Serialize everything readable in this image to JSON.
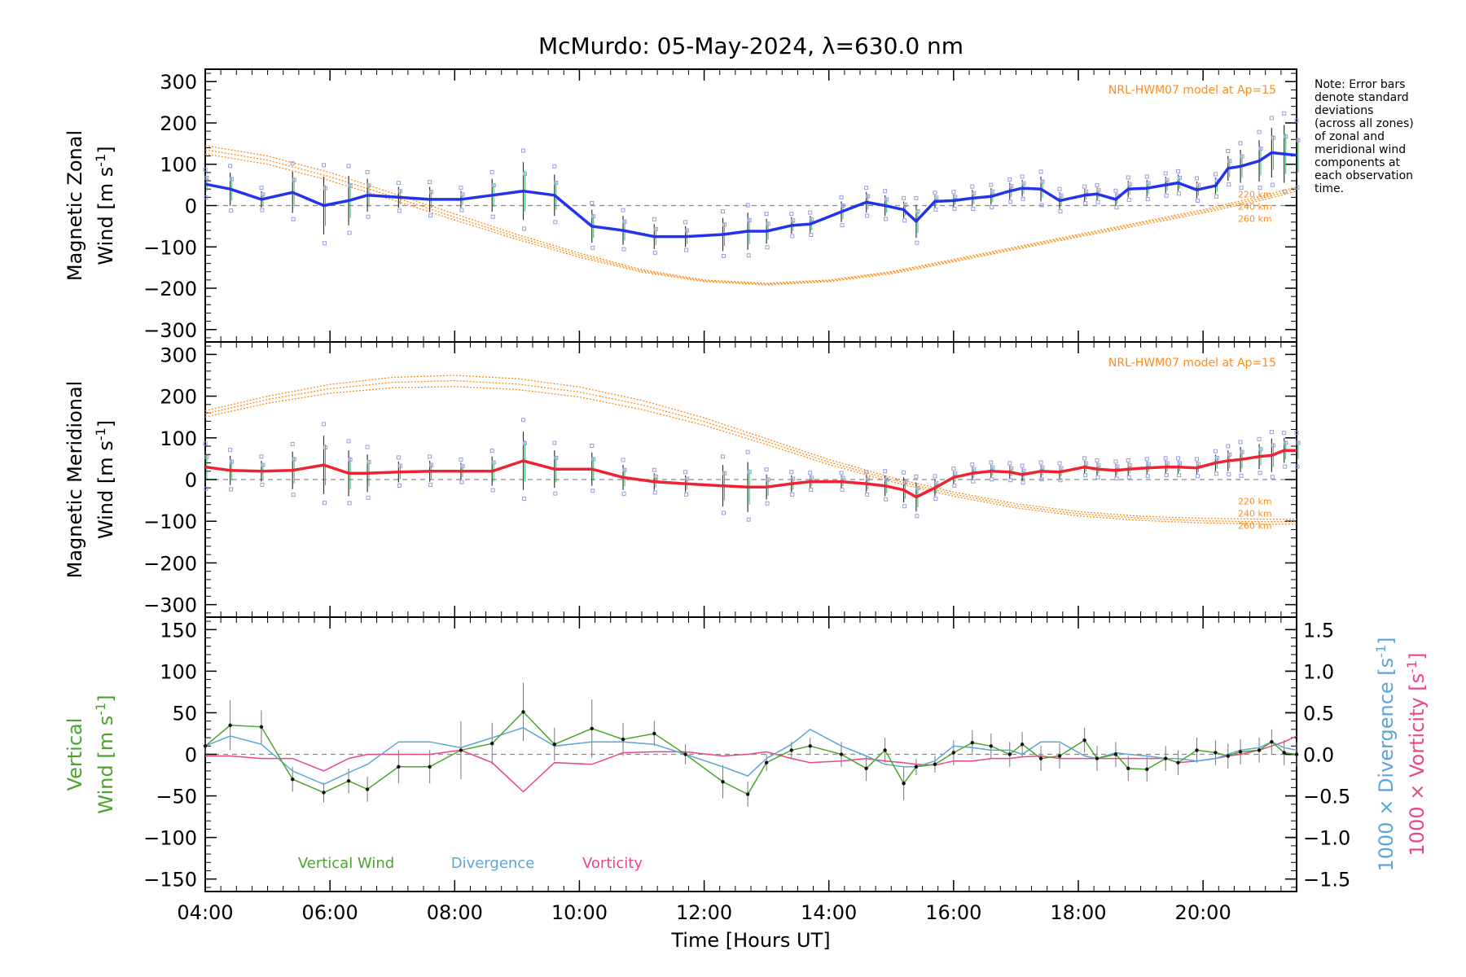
{
  "title": "McMurdo: 05-May-2024, λ=630.0 nm",
  "note": "Note: Error bars\ndenote standard\ndeviations\n(across all zones)\nof zonal and\nmeridional wind\ncomponents at\neach observation\ntime.",
  "xlabel": "Time [Hours UT]",
  "colors": {
    "zonal": "#2233ee",
    "meridional": "#ee2233",
    "model": "#ff8c1a",
    "vertical": "#4aa52a",
    "divergence": "#5aa6d6",
    "vorticity": "#ee4488",
    "scatter": "#9999dd",
    "zero_line": "#888888"
  },
  "chart_data": [
    {
      "type": "line",
      "panel": "zonal",
      "ylabel_line1": "Magnetic Zonal",
      "ylabel_line2": "Wind [m s",
      "ylabel_sup": "-1",
      "ylabel_end": "]",
      "ylim": [
        -330,
        330
      ],
      "xlim": [
        4.0,
        21.5
      ],
      "yticks": [
        -300,
        -200,
        -100,
        0,
        100,
        200,
        300
      ],
      "model_label": "NRL-HWM07 model at Ap=15",
      "altitude_labels": [
        "220 km",
        "240 km",
        "260 km"
      ],
      "x": [
        4.0,
        4.4,
        4.9,
        5.4,
        5.9,
        6.3,
        6.6,
        7.1,
        7.6,
        8.1,
        8.6,
        9.1,
        9.6,
        10.2,
        10.7,
        11.2,
        11.7,
        12.3,
        12.7,
        13.0,
        13.4,
        13.7,
        14.2,
        14.6,
        14.9,
        15.2,
        15.4,
        15.7,
        16.0,
        16.3,
        16.6,
        16.9,
        17.1,
        17.4,
        17.7,
        18.1,
        18.3,
        18.6,
        18.8,
        19.1,
        19.4,
        19.6,
        19.9,
        20.2,
        20.4,
        20.6,
        20.9,
        21.1,
        21.3,
        21.5
      ],
      "values": [
        52,
        40,
        15,
        32,
        0,
        12,
        25,
        20,
        15,
        15,
        25,
        35,
        25,
        -50,
        -60,
        -75,
        -75,
        -70,
        -62,
        -62,
        -48,
        -45,
        -15,
        8,
        0,
        -10,
        -38,
        10,
        12,
        18,
        22,
        35,
        42,
        40,
        12,
        25,
        28,
        15,
        40,
        42,
        50,
        55,
        38,
        48,
        90,
        95,
        108,
        128,
        125,
        122
      ],
      "error": [
        25,
        40,
        20,
        50,
        70,
        60,
        40,
        25,
        30,
        20,
        40,
        70,
        50,
        40,
        35,
        30,
        25,
        40,
        45,
        30,
        20,
        20,
        25,
        25,
        25,
        20,
        40,
        15,
        15,
        20,
        20,
        20,
        20,
        30,
        20,
        15,
        15,
        15,
        20,
        20,
        20,
        20,
        20,
        20,
        30,
        40,
        50,
        60,
        70,
        60
      ],
      "model": [
        {
          "name": "220 km",
          "x": [
            4.0,
            5.0,
            6.0,
            7.0,
            8.0,
            9.0,
            10.0,
            11.0,
            12.0,
            13.0,
            14.0,
            15.0,
            16.0,
            17.0,
            18.0,
            19.0,
            20.0,
            21.0,
            21.5
          ],
          "values": [
            145,
            120,
            80,
            30,
            -20,
            -70,
            -115,
            -155,
            -180,
            -188,
            -180,
            -160,
            -130,
            -100,
            -70,
            -40,
            -10,
            25,
            45
          ]
        },
        {
          "name": "240 km",
          "x": [
            4.0,
            5.0,
            6.0,
            7.0,
            8.0,
            9.0,
            10.0,
            11.0,
            12.0,
            13.0,
            14.0,
            15.0,
            16.0,
            17.0,
            18.0,
            19.0,
            20.0,
            21.0,
            21.5
          ],
          "values": [
            135,
            110,
            70,
            22,
            -28,
            -76,
            -120,
            -158,
            -182,
            -190,
            -182,
            -162,
            -133,
            -103,
            -73,
            -43,
            -14,
            20,
            40
          ]
        },
        {
          "name": "260 km",
          "x": [
            4.0,
            5.0,
            6.0,
            7.0,
            8.0,
            9.0,
            10.0,
            11.0,
            12.0,
            13.0,
            14.0,
            15.0,
            16.0,
            17.0,
            18.0,
            19.0,
            20.0,
            21.0,
            21.5
          ],
          "values": [
            125,
            100,
            60,
            14,
            -35,
            -82,
            -125,
            -161,
            -184,
            -192,
            -184,
            -165,
            -136,
            -106,
            -76,
            -47,
            -18,
            15,
            35
          ]
        }
      ]
    },
    {
      "type": "line",
      "panel": "meridional",
      "ylabel_line1": "Magnetic Meridional",
      "ylabel_line2": "Wind [m s",
      "ylabel_sup": "-1",
      "ylabel_end": "]",
      "ylim": [
        -330,
        330
      ],
      "xlim": [
        4.0,
        21.5
      ],
      "yticks": [
        -300,
        -200,
        -100,
        0,
        100,
        200,
        300
      ],
      "model_label": "NRL-HWM07 model at Ap=15",
      "altitude_labels": [
        "220 km",
        "240 km",
        "260 km"
      ],
      "x": [
        4.0,
        4.4,
        4.9,
        5.4,
        5.9,
        6.3,
        6.6,
        7.1,
        7.6,
        8.1,
        8.6,
        9.1,
        9.6,
        10.2,
        10.7,
        11.2,
        11.7,
        12.3,
        12.7,
        13.0,
        13.4,
        13.7,
        14.2,
        14.6,
        14.9,
        15.2,
        15.4,
        15.7,
        16.0,
        16.3,
        16.6,
        16.9,
        17.1,
        17.4,
        17.7,
        18.1,
        18.3,
        18.6,
        18.8,
        19.1,
        19.4,
        19.6,
        19.9,
        20.2,
        20.4,
        20.6,
        20.9,
        21.1,
        21.3,
        21.5
      ],
      "values": [
        30,
        22,
        20,
        22,
        35,
        15,
        15,
        18,
        20,
        20,
        20,
        45,
        25,
        25,
        5,
        -5,
        -10,
        -15,
        -18,
        -18,
        -10,
        -5,
        -5,
        -10,
        -15,
        -25,
        -42,
        -20,
        5,
        15,
        20,
        18,
        12,
        20,
        18,
        30,
        25,
        22,
        25,
        28,
        30,
        30,
        28,
        40,
        45,
        48,
        55,
        58,
        70,
        70
      ],
      "error": [
        40,
        35,
        25,
        45,
        70,
        55,
        45,
        25,
        25,
        20,
        35,
        70,
        45,
        40,
        30,
        20,
        20,
        50,
        60,
        30,
        20,
        15,
        15,
        20,
        25,
        30,
        35,
        20,
        15,
        15,
        15,
        15,
        15,
        15,
        15,
        15,
        15,
        15,
        15,
        15,
        15,
        15,
        15,
        20,
        25,
        30,
        30,
        40,
        30,
        30
      ],
      "model": [
        {
          "name": "220 km",
          "x": [
            4.0,
            5.0,
            6.0,
            7.0,
            8.0,
            9.0,
            10.0,
            11.0,
            12.0,
            13.0,
            14.0,
            15.0,
            16.0,
            17.0,
            18.0,
            19.0,
            20.0,
            21.0,
            21.5
          ],
          "values": [
            165,
            200,
            228,
            245,
            250,
            242,
            222,
            190,
            148,
            98,
            48,
            5,
            -30,
            -58,
            -77,
            -88,
            -93,
            -95,
            -95
          ]
        },
        {
          "name": "240 km",
          "x": [
            4.0,
            5.0,
            6.0,
            7.0,
            8.0,
            9.0,
            10.0,
            11.0,
            12.0,
            13.0,
            14.0,
            15.0,
            16.0,
            17.0,
            18.0,
            19.0,
            20.0,
            21.0,
            21.5
          ],
          "values": [
            158,
            192,
            218,
            233,
            237,
            229,
            210,
            179,
            139,
            91,
            42,
            0,
            -35,
            -63,
            -82,
            -93,
            -99,
            -101,
            -101
          ]
        },
        {
          "name": "260 km",
          "x": [
            4.0,
            5.0,
            6.0,
            7.0,
            8.0,
            9.0,
            10.0,
            11.0,
            12.0,
            13.0,
            14.0,
            15.0,
            16.0,
            17.0,
            18.0,
            19.0,
            20.0,
            21.0,
            21.5
          ],
          "values": [
            150,
            183,
            207,
            220,
            223,
            216,
            198,
            168,
            130,
            84,
            36,
            -5,
            -40,
            -68,
            -87,
            -98,
            -104,
            -107,
            -107
          ]
        }
      ]
    },
    {
      "type": "line",
      "panel": "vertical",
      "ylabel_line1": "Vertical",
      "ylabel_line2": "Wind [m s",
      "ylabel_sup": "-1",
      "ylabel_end": "]",
      "ylim": [
        -165,
        165
      ],
      "xlim": [
        4.0,
        21.5
      ],
      "yticks": [
        -150,
        -100,
        -50,
        0,
        50,
        100,
        150
      ],
      "xticks": [
        "04:00",
        "06:00",
        "08:00",
        "10:00",
        "12:00",
        "14:00",
        "16:00",
        "18:00",
        "20:00"
      ],
      "y2label_div": "1000 × Divergence [s",
      "y2label_vort": "1000 × Vorticity [s",
      "y2label_sup": "-1",
      "y2label_end": "]",
      "y2lim": [
        -1.65,
        1.65
      ],
      "y2ticks": [
        -1.5,
        -1.0,
        -0.5,
        0.0,
        0.5,
        1.0,
        1.5
      ],
      "legend": [
        "Vertical Wind",
        "Divergence",
        "Vorticity"
      ],
      "series": [
        {
          "name": "Vertical Wind",
          "x": [
            4.0,
            4.4,
            4.9,
            5.4,
            5.9,
            6.3,
            6.6,
            7.1,
            7.6,
            8.1,
            8.6,
            9.1,
            9.6,
            10.2,
            10.7,
            11.2,
            11.7,
            12.3,
            12.7,
            13.0,
            13.4,
            13.7,
            14.2,
            14.6,
            14.9,
            15.2,
            15.4,
            15.7,
            16.0,
            16.3,
            16.6,
            16.9,
            17.1,
            17.4,
            17.7,
            18.1,
            18.3,
            18.6,
            18.8,
            19.1,
            19.4,
            19.6,
            19.9,
            20.2,
            20.4,
            20.6,
            20.9,
            21.1,
            21.3,
            21.5
          ],
          "values": [
            10,
            35,
            33,
            -30,
            -46,
            -32,
            -42,
            -15,
            -15,
            5,
            13,
            51,
            12,
            31,
            18,
            25,
            0,
            -33,
            -48,
            -10,
            5,
            10,
            0,
            -17,
            5,
            -35,
            -15,
            -12,
            2,
            14,
            10,
            0,
            12,
            -5,
            -2,
            17,
            -5,
            0,
            -17,
            -18,
            -5,
            -10,
            5,
            2,
            -2,
            3,
            5,
            15,
            2,
            0
          ],
          "error": [
            10,
            30,
            20,
            15,
            12,
            15,
            15,
            20,
            20,
            35,
            25,
            35,
            20,
            35,
            20,
            15,
            12,
            20,
            15,
            10,
            10,
            10,
            15,
            15,
            15,
            20,
            10,
            10,
            15,
            15,
            15,
            15,
            15,
            15,
            15,
            15,
            15,
            15,
            15,
            15,
            15,
            15,
            15,
            15,
            15,
            15,
            15,
            15,
            15,
            15
          ]
        },
        {
          "name": "Divergence",
          "x": [
            4.0,
            4.4,
            4.9,
            5.4,
            5.9,
            6.3,
            6.6,
            7.1,
            7.6,
            8.1,
            8.6,
            9.1,
            9.6,
            10.2,
            10.7,
            11.2,
            11.7,
            12.3,
            12.7,
            13.0,
            13.4,
            13.7,
            14.2,
            14.6,
            14.9,
            15.2,
            15.4,
            15.7,
            16.0,
            16.3,
            16.6,
            16.9,
            17.1,
            17.4,
            17.7,
            18.1,
            18.3,
            18.6,
            18.8,
            19.1,
            19.4,
            19.6,
            19.9,
            20.2,
            20.4,
            20.6,
            20.9,
            21.1,
            21.3,
            21.5
          ],
          "values": [
            0.1,
            0.22,
            0.12,
            -0.2,
            -0.36,
            -0.22,
            -0.12,
            0.15,
            0.15,
            0.08,
            0.2,
            0.32,
            0.1,
            0.15,
            0.15,
            0.12,
            0.0,
            -0.15,
            -0.26,
            -0.05,
            0.12,
            0.3,
            0.1,
            -0.02,
            -0.12,
            -0.15,
            -0.15,
            -0.08,
            0.1,
            0.08,
            0.05,
            0.05,
            0.0,
            0.15,
            0.15,
            -0.02,
            -0.05,
            0.02,
            0.0,
            -0.02,
            -0.05,
            -0.05,
            -0.08,
            -0.05,
            0.0,
            0.05,
            0.08,
            0.15,
            0.08,
            0.05
          ]
        },
        {
          "name": "Vorticity",
          "x": [
            4.0,
            4.4,
            4.9,
            5.4,
            5.9,
            6.3,
            6.6,
            7.1,
            7.6,
            8.1,
            8.6,
            9.1,
            9.6,
            10.2,
            10.7,
            11.2,
            11.7,
            12.3,
            12.7,
            13.0,
            13.4,
            13.7,
            14.2,
            14.6,
            14.9,
            15.2,
            15.4,
            15.7,
            16.0,
            16.3,
            16.6,
            16.9,
            17.1,
            17.4,
            17.7,
            18.1,
            18.3,
            18.6,
            18.8,
            19.1,
            19.4,
            19.6,
            19.9,
            20.2,
            20.4,
            20.6,
            20.9,
            21.1,
            21.3,
            21.5
          ],
          "values": [
            -0.02,
            -0.02,
            -0.05,
            -0.05,
            -0.2,
            -0.05,
            0.0,
            0.0,
            0.0,
            0.05,
            -0.1,
            -0.45,
            -0.1,
            -0.12,
            0.02,
            0.03,
            0.03,
            -0.02,
            0.0,
            0.03,
            -0.05,
            -0.1,
            -0.08,
            -0.05,
            -0.08,
            -0.1,
            -0.12,
            -0.13,
            -0.08,
            -0.08,
            -0.05,
            -0.05,
            -0.03,
            -0.02,
            -0.05,
            -0.05,
            -0.05,
            -0.05,
            -0.05,
            -0.05,
            -0.05,
            -0.1,
            -0.08,
            -0.05,
            -0.02,
            0.0,
            0.05,
            0.1,
            0.15,
            0.22
          ]
        }
      ]
    }
  ]
}
